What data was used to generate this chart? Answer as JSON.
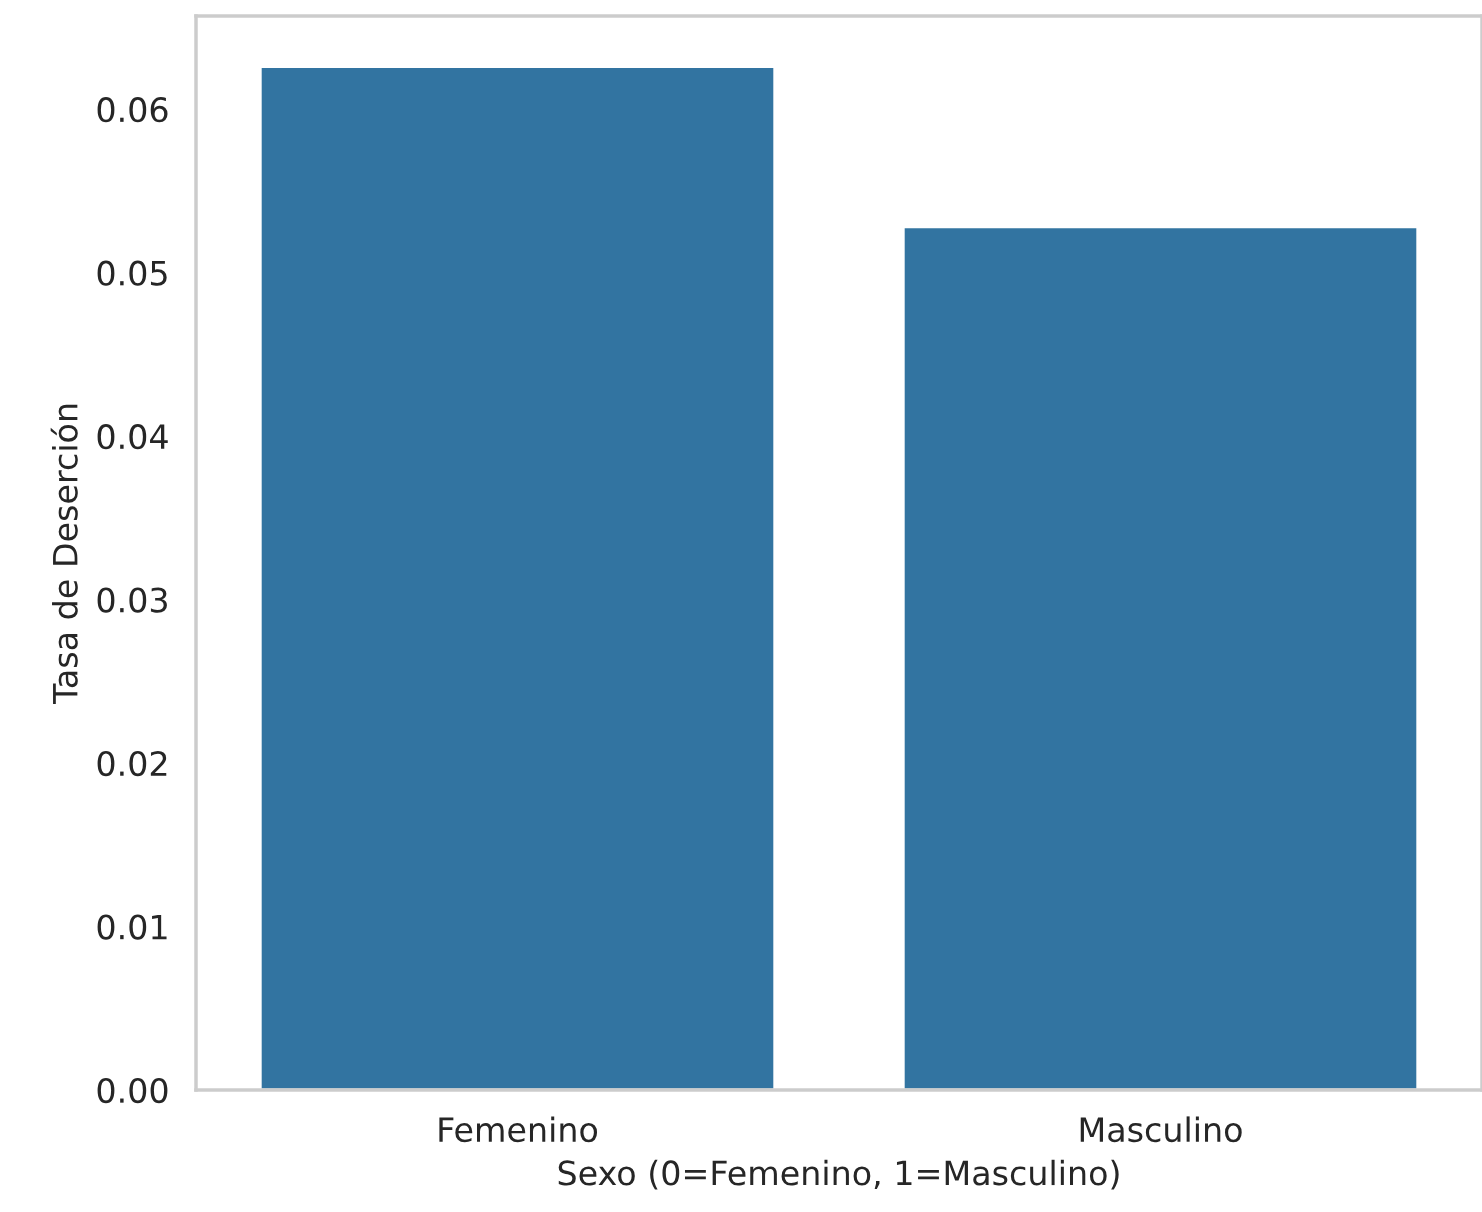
{
  "chart_data": {
    "type": "bar",
    "xlabel": "Sexo (0=Femenino, 1=Masculino)",
    "ylabel": "Tasa de Deserción",
    "categories": [
      "Femenino",
      "Masculino"
    ],
    "values": [
      0.0626,
      0.0528
    ],
    "color": "#3274a1",
    "ylim": [
      0,
      0.0657
    ],
    "yticks": [
      {
        "value": 0,
        "label": "0.00"
      },
      0.01,
      0.02,
      0.03,
      0.04,
      0.05,
      0.06
    ],
    "grid": false
  }
}
